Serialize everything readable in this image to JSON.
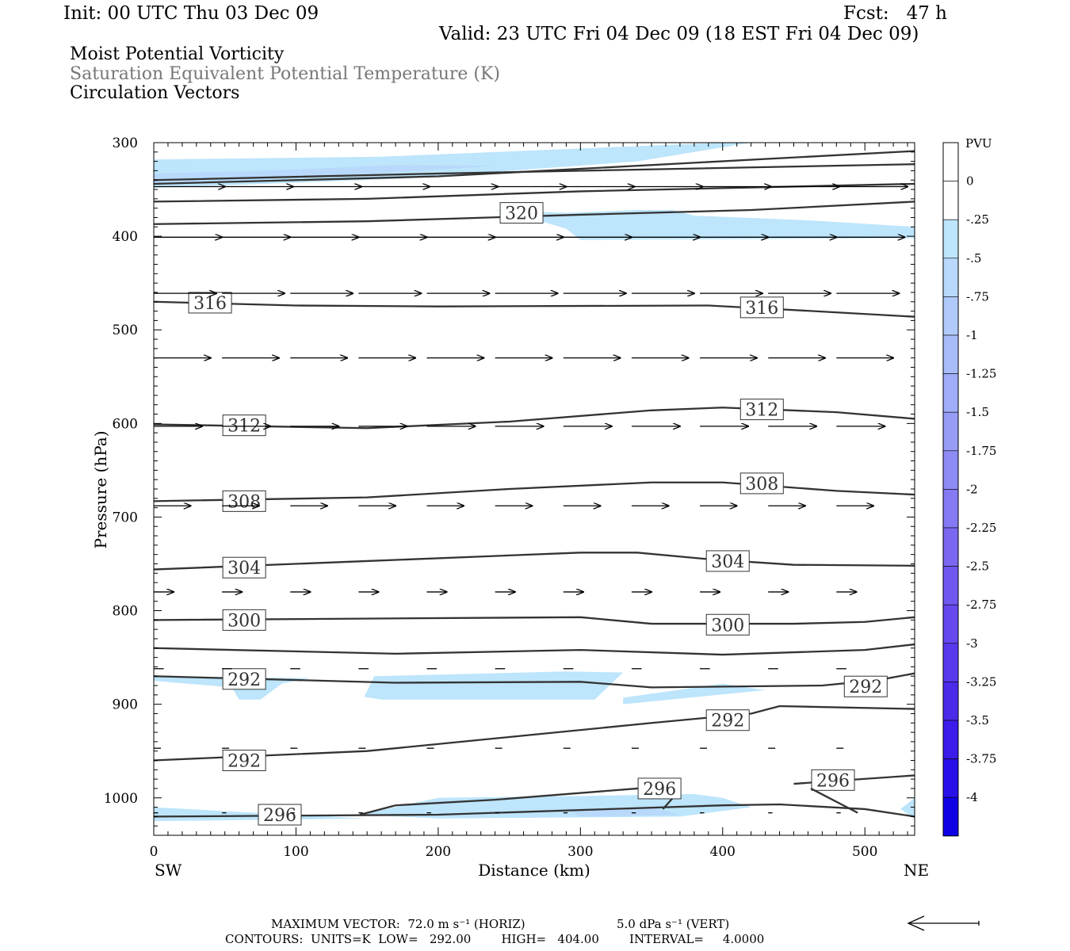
{
  "header": {
    "init": "Init: 00 UTC Thu 03 Dec 09",
    "fcst": "Fcst:   47 h",
    "valid": "Valid: 23 UTC Fri 04 Dec 09 (18 EST Fri 04 Dec 09)",
    "title1": "Moist Potential Vorticity",
    "title2": "Saturation Equivalent Potential Temperature (K)",
    "title3": "Circulation Vectors"
  },
  "chart_data": {
    "type": "cross-section",
    "xlabel": "Distance (km)",
    "ylabel": "Pressure (hPa)",
    "xlim": [
      0,
      535
    ],
    "ylim": [
      1040,
      300
    ],
    "x_ticks": [
      0,
      100,
      200,
      300,
      400,
      500
    ],
    "y_ticks": [
      300,
      400,
      500,
      600,
      700,
      800,
      900,
      1000
    ],
    "x_end_labels": {
      "left": "SW",
      "right": "NE"
    },
    "colorbar": {
      "unit": "PVU",
      "labels": [
        "0",
        "-.25",
        "-.5",
        "-.75",
        "-1",
        "-1.25",
        "-1.5",
        "-1.75",
        "-2",
        "-2.25",
        "-2.5",
        "-2.75",
        "-3",
        "-3.25",
        "-3.5",
        "-3.75",
        "-4"
      ],
      "colors": [
        "#ffffff",
        "#ffffff",
        "#bde5fb",
        "#b8d9fb",
        "#b0cbfa",
        "#a8bcf9",
        "#a0adf8",
        "#979cf6",
        "#8e8bf5",
        "#857af3",
        "#7b68f1",
        "#7058ef",
        "#6648ee",
        "#5a38ec",
        "#4c2aea",
        "#3c1cea",
        "#2a10e8",
        "#1000e6"
      ]
    },
    "contours": [
      {
        "label": "",
        "points": [
          [
            0,
            344
          ],
          [
            200,
            336
          ],
          [
            535,
            309
          ]
        ]
      },
      {
        "label": "",
        "points": [
          [
            0,
            340
          ],
          [
            200,
            333
          ],
          [
            535,
            323
          ]
        ]
      },
      {
        "label": "",
        "points": [
          [
            0,
            363
          ],
          [
            150,
            360
          ],
          [
            300,
            352
          ],
          [
            535,
            344
          ]
        ]
      },
      {
        "label": "320",
        "label_at": [
          243,
          375
        ],
        "points": [
          [
            0,
            387
          ],
          [
            150,
            384
          ],
          [
            300,
            377
          ],
          [
            420,
            372
          ],
          [
            535,
            363
          ]
        ]
      },
      {
        "label": "316",
        "label_at": [
          24,
          471
        ],
        "points": [
          [
            0,
            470
          ],
          [
            100,
            474
          ],
          [
            200,
            475
          ],
          [
            390,
            474
          ],
          [
            440,
            478
          ],
          [
            535,
            486
          ]
        ]
      },
      {
        "label": "316",
        "label_at": [
          412,
          476
        ],
        "points": []
      },
      {
        "label": "312",
        "label_at": [
          48,
          602
        ],
        "points": [
          [
            0,
            601
          ],
          [
            150,
            605
          ],
          [
            250,
            598
          ],
          [
            350,
            586
          ],
          [
            400,
            583
          ],
          [
            480,
            588
          ],
          [
            535,
            595
          ]
        ]
      },
      {
        "label": "312",
        "label_at": [
          412,
          585
        ],
        "points": []
      },
      {
        "label": "308",
        "label_at": [
          48,
          683
        ],
        "points": [
          [
            0,
            683
          ],
          [
            150,
            679
          ],
          [
            250,
            670
          ],
          [
            350,
            663
          ],
          [
            400,
            663
          ],
          [
            480,
            672
          ],
          [
            535,
            676
          ]
        ]
      },
      {
        "label": "308",
        "label_at": [
          412,
          664
        ],
        "points": []
      },
      {
        "label": "304",
        "label_at": [
          48,
          754
        ],
        "points": [
          [
            0,
            756
          ],
          [
            150,
            747
          ],
          [
            300,
            738
          ],
          [
            340,
            738
          ],
          [
            390,
            745
          ],
          [
            450,
            751
          ],
          [
            535,
            752
          ]
        ]
      },
      {
        "label": "304",
        "label_at": [
          388,
          747
        ],
        "points": []
      },
      {
        "label": "300",
        "label_at": [
          48,
          810
        ],
        "points": [
          [
            0,
            810
          ],
          [
            300,
            807
          ],
          [
            350,
            814
          ],
          [
            450,
            814
          ],
          [
            500,
            812
          ],
          [
            535,
            807
          ]
        ]
      },
      {
        "label": "300",
        "label_at": [
          388,
          815
        ],
        "points": []
      },
      {
        "label": "",
        "points": [
          [
            0,
            840
          ],
          [
            170,
            846
          ],
          [
            300,
            842
          ],
          [
            400,
            847
          ],
          [
            500,
            842
          ],
          [
            535,
            836
          ]
        ]
      },
      {
        "label": "292",
        "label_at": [
          48,
          873
        ],
        "points": [
          [
            0,
            870
          ],
          [
            170,
            877
          ],
          [
            300,
            876
          ],
          [
            350,
            882
          ],
          [
            470,
            880
          ],
          [
            510,
            874
          ],
          [
            535,
            867
          ]
        ]
      },
      {
        "label": "292",
        "label_at": [
          485,
          881
        ],
        "points": []
      },
      {
        "label": "292",
        "label_at": [
          48,
          960
        ],
        "points": [
          [
            0,
            960
          ],
          [
            150,
            950
          ],
          [
            250,
            935
          ],
          [
            350,
            920
          ],
          [
            420,
            910
          ],
          [
            440,
            902
          ],
          [
            535,
            905
          ]
        ]
      },
      {
        "label": "292",
        "label_at": [
          388,
          917
        ],
        "points": []
      },
      {
        "label": "296",
        "label_at": [
          340,
          990
        ],
        "points": [
          [
            145,
            1018
          ],
          [
            170,
            1008
          ],
          [
            240,
            1002
          ],
          [
            340,
            990
          ],
          [
            365,
            990
          ],
          [
            365,
            1000
          ],
          [
            358,
            1012
          ]
        ]
      },
      {
        "label": "296",
        "label_at": [
          462,
          981
        ],
        "points": [
          [
            450,
            985
          ],
          [
            535,
            976
          ]
        ]
      },
      {
        "label": "",
        "points": [
          [
            495,
            1016
          ],
          [
            462,
            990
          ]
        ]
      },
      {
        "label": "296",
        "label_at": [
          73,
          1018
        ],
        "points": [
          [
            0,
            1020
          ],
          [
            200,
            1018
          ],
          [
            400,
            1008
          ],
          [
            440,
            1007
          ],
          [
            500,
            1012
          ],
          [
            535,
            1020
          ]
        ]
      }
    ],
    "shaded_regions": [
      {
        "value": "-.25",
        "points": [
          [
            0,
            318
          ],
          [
            160,
            315
          ],
          [
            400,
            300
          ],
          [
            420,
            300
          ],
          [
            340,
            320
          ],
          [
            180,
            338
          ],
          [
            60,
            345
          ],
          [
            0,
            348
          ]
        ]
      },
      {
        "value": "-.5",
        "points": [
          [
            0,
            333
          ],
          [
            80,
            330
          ],
          [
            170,
            324
          ],
          [
            240,
            325
          ],
          [
            120,
            336
          ],
          [
            0,
            345
          ]
        ]
      },
      {
        "value": "-.25",
        "points": [
          [
            240,
            372
          ],
          [
            290,
            375
          ],
          [
            340,
            372
          ],
          [
            365,
            372
          ],
          [
            380,
            378
          ],
          [
            460,
            383
          ],
          [
            535,
            390
          ],
          [
            535,
            402
          ],
          [
            300,
            404
          ],
          [
            290,
            392
          ],
          [
            270,
            383
          ]
        ]
      },
      {
        "value": "-.25",
        "points": [
          [
            0,
            870
          ],
          [
            110,
            872
          ],
          [
            90,
            878
          ],
          [
            75,
            895
          ],
          [
            60,
            895
          ],
          [
            55,
            882
          ],
          [
            0,
            875
          ]
        ]
      },
      {
        "value": "-.25",
        "points": [
          [
            155,
            870
          ],
          [
            290,
            865
          ],
          [
            330,
            866
          ],
          [
            310,
            895
          ],
          [
            160,
            895
          ],
          [
            148,
            892
          ]
        ]
      },
      {
        "value": "-.25",
        "points": [
          [
            330,
            893
          ],
          [
            400,
            878
          ],
          [
            430,
            885
          ],
          [
            330,
            900
          ]
        ]
      },
      {
        "value": "-.25",
        "points": [
          [
            0,
            1010
          ],
          [
            60,
            1015
          ],
          [
            150,
            1022
          ],
          [
            0,
            1025
          ]
        ]
      },
      {
        "value": "-.25",
        "points": [
          [
            145,
            1018
          ],
          [
            200,
            1000
          ],
          [
            300,
            998
          ],
          [
            380,
            996
          ],
          [
            400,
            1000
          ],
          [
            420,
            1010
          ],
          [
            370,
            1020
          ],
          [
            200,
            1022
          ]
        ]
      },
      {
        "value": "-.5",
        "points": [
          [
            290,
            1012
          ],
          [
            350,
            1010
          ],
          [
            370,
            1018
          ],
          [
            300,
            1020
          ]
        ]
      },
      {
        "value": "-.25",
        "points": [
          [
            525,
            1012
          ],
          [
            535,
            1000
          ],
          [
            535,
            1022
          ]
        ]
      }
    ],
    "vectors": [
      {
        "p": 347,
        "x0": 0,
        "dx": 48,
        "n": 11,
        "len": 50,
        "dy": 0
      },
      {
        "p": 401,
        "x0": 0,
        "dx": 48,
        "n": 11,
        "len": 48,
        "dy": 0
      },
      {
        "p": 461,
        "x0": 0,
        "dx": 48,
        "n": 11,
        "len": 44,
        "dy": 0
      },
      {
        "p": 530,
        "x0": 0,
        "dx": 48,
        "n": 11,
        "len": 40,
        "dy": 0
      },
      {
        "p": 603,
        "x0": 0,
        "dx": 48,
        "n": 11,
        "len": 34,
        "dy": 0
      },
      {
        "p": 688,
        "x0": 0,
        "dx": 48,
        "n": 11,
        "len": 26,
        "dy": 0
      },
      {
        "p": 780,
        "x0": 0,
        "dx": 48,
        "n": 11,
        "len": 14,
        "dy": 0
      },
      {
        "p": 862,
        "x0": 0,
        "dx": 48,
        "n": 11,
        "len": 7,
        "dy": 0
      },
      {
        "p": 947,
        "x0": 0,
        "dx": 48,
        "n": 11,
        "len": 5,
        "dy": 0
      },
      {
        "p": 1016,
        "x0": 0,
        "dx": 48,
        "n": 11,
        "len": 3,
        "dy": 0
      }
    ]
  },
  "footer": {
    "max_vector": "MAXIMUM VECTOR:  72.0 m s⁻¹ (HORIZ)",
    "max_vert": "5.0 dPa s⁻¹ (VERT)",
    "contours": "CONTOURS:  UNITS=K  LOW=   292.00        HIGH=   404.00        INTERVAL=     4.0000"
  }
}
